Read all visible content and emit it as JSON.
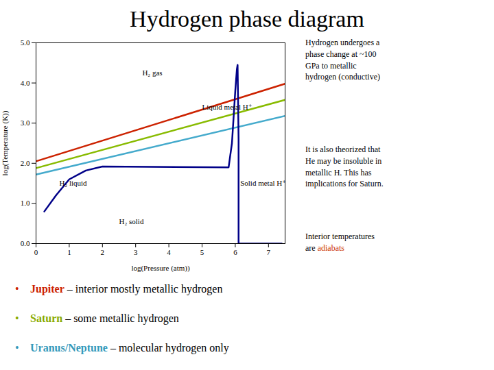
{
  "chart_data": {
    "type": "line",
    "title": "Hydrogen phase diagram",
    "xlabel": "log(Pressure (atm))",
    "ylabel": "log(Temperature (K))",
    "xlim": [
      0,
      7.5
    ],
    "ylim": [
      0,
      5
    ],
    "xticks": [
      0,
      1,
      2,
      3,
      4,
      5,
      6,
      7
    ],
    "yticks": [
      0,
      1,
      2,
      3,
      4,
      5
    ],
    "grid": false,
    "series": [
      {
        "color": "#CC2200",
        "x": [
          0,
          7.5
        ],
        "values": [
          2.05,
          3.98
        ]
      },
      {
        "color": "#88BB00",
        "x": [
          0,
          7.5
        ],
        "values": [
          1.88,
          3.58
        ]
      },
      {
        "color": "#44AACC",
        "x": [
          0,
          7.5
        ],
        "values": [
          1.72,
          3.18
        ]
      },
      {
        "color": "#000088",
        "x": [
          0.25,
          0.6,
          1.0,
          1.5,
          2.0,
          5.8,
          5.9,
          6.0,
          6.05,
          6.07,
          6.09,
          6.1,
          6.1,
          7.4
        ],
        "values": [
          0.8,
          1.2,
          1.6,
          1.82,
          1.92,
          1.9,
          2.5,
          3.8,
          4.35,
          4.45,
          3.2,
          2.6,
          0.0,
          0.0
        ]
      }
    ],
    "annotations": [
      {
        "text": "H₂ gas",
        "x": 3.2,
        "y": 4.25
      },
      {
        "text": "Liquid metal H⁺",
        "x": 5.0,
        "y": 3.4
      },
      {
        "text": "H₂ liquid",
        "x": 0.7,
        "y": 1.5
      },
      {
        "text": "H₂ solid",
        "x": 2.5,
        "y": 0.55
      },
      {
        "text": "Solid metal H⁺",
        "x": 6.15,
        "y": 1.5
      }
    ],
    "notes": [
      "Hydrogen undergoes a\nphase change at ~100\nGPa to metallic\nhydrogen (conductive)",
      "It is also theorized that\nHe may be insoluble in\nmetallic H. This has\nimplications for Saturn."
    ],
    "highlight_note": {
      "text": "Interior temperatures\nare ",
      "highlight": "adiabats",
      "color": "#CC3300"
    },
    "bullet_symbol": "•",
    "bullets": [
      {
        "color": "#CC2200",
        "bold": "Jupiter",
        "rest": " – interior mostly metallic hydrogen"
      },
      {
        "color": "#88AA00",
        "bold": "Saturn",
        "rest": " – some metallic hydrogen"
      },
      {
        "color": "#3399BB",
        "bold": "Uranus/Neptune",
        "rest": " – molecular hydrogen only"
      }
    ]
  }
}
